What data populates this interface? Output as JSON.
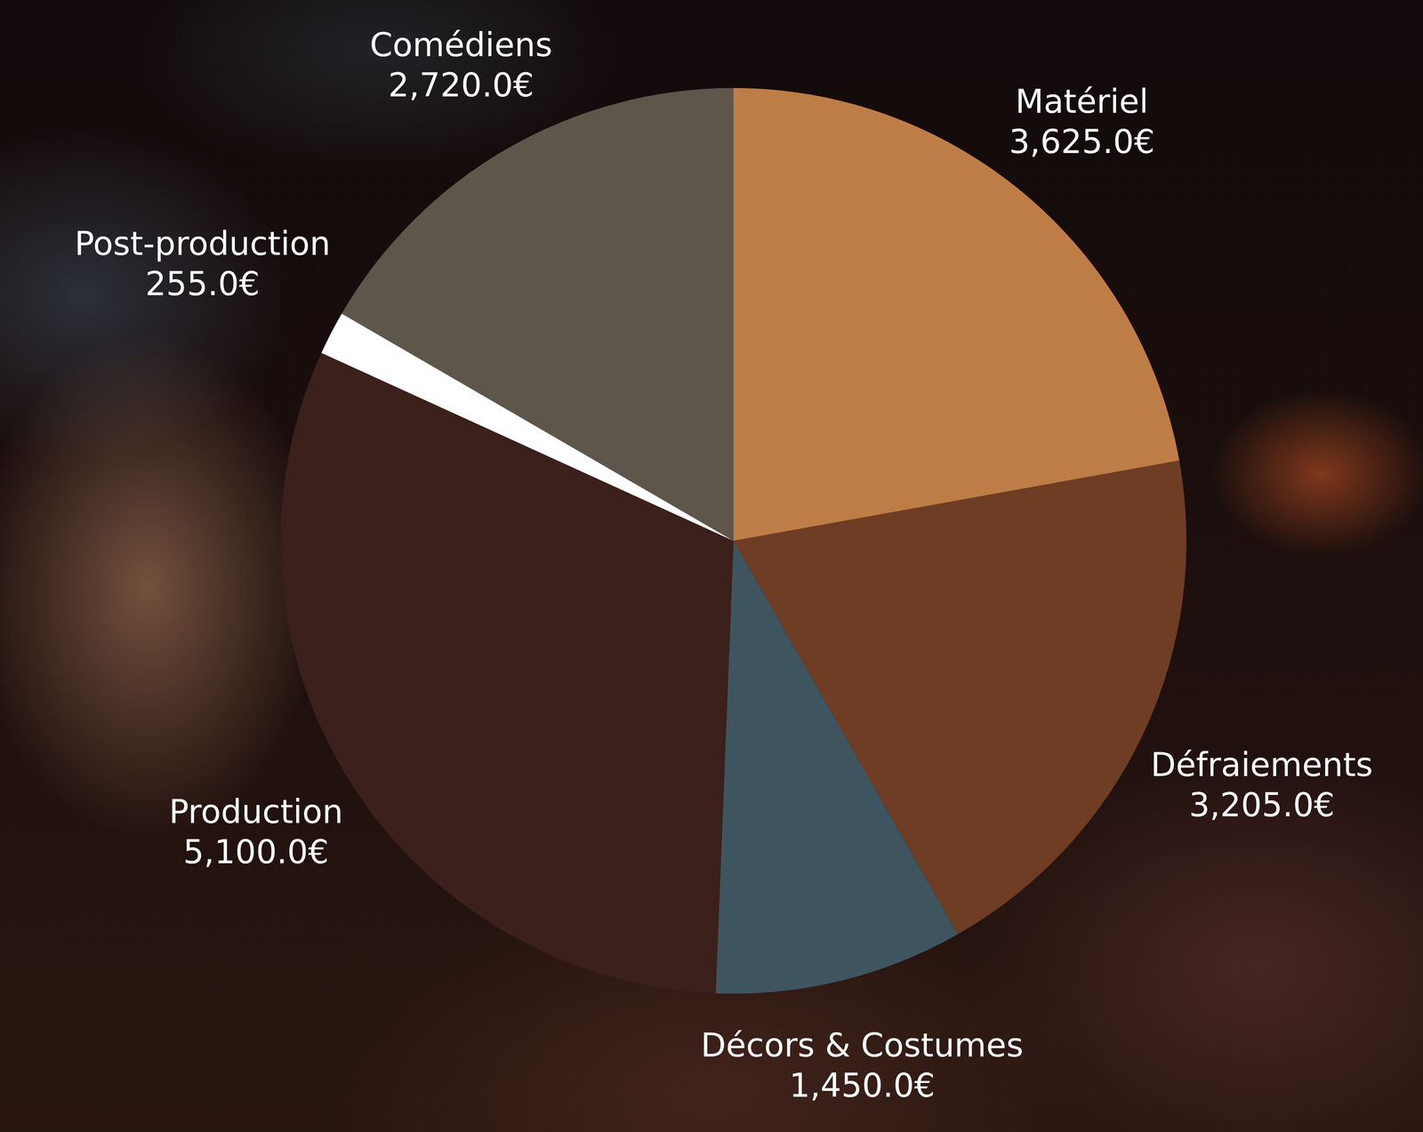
{
  "chart_data": {
    "type": "pie",
    "categories": [
      "Matériel",
      "Défraiements",
      "Décors & Costumes",
      "Production",
      "Post-production",
      "Comédiens"
    ],
    "values": [
      3625,
      3205,
      1450,
      5100,
      255,
      2720
    ],
    "value_labels": [
      "3,625.0€",
      "3,205.0€",
      "1,450.0€",
      "5,100.0€",
      "255.0€",
      "2,720.0€"
    ],
    "colors": [
      "#be7d46",
      "#6f3d24",
      "#3e5560",
      "#3b201b",
      "#ffffff",
      "#5f564b"
    ],
    "data_labels": true
  }
}
